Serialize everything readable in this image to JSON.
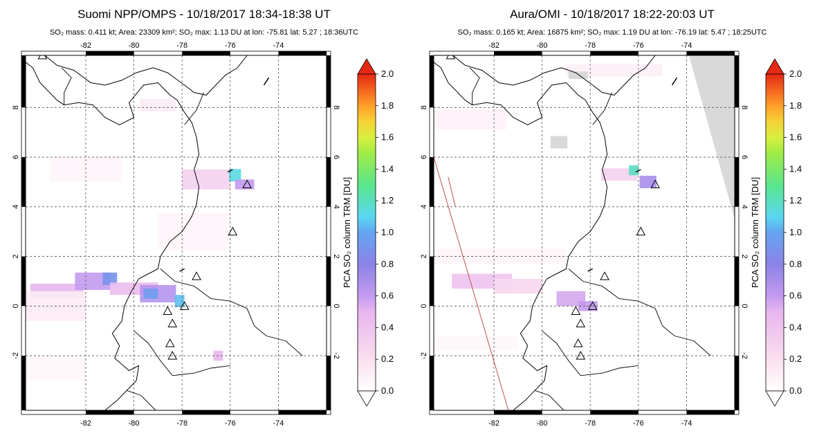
{
  "panels": [
    {
      "title": "Suomi NPP/OMPS - 10/18/2017 18:34-18:38 UT",
      "subtitle": "SO₂ mass: 0.411 kt; Area: 23309 km²; SO₂ max: 1.13 DU at lon: -75.81 lat: 5.27 ; 18:36UTC",
      "plumes": [
        {
          "lon": -83.2,
          "lat": 0.6,
          "w": 2.2,
          "h": 0.6,
          "v": 0.5
        },
        {
          "lon": -81.7,
          "lat": 1.0,
          "w": 1.5,
          "h": 0.7,
          "v": 0.6
        },
        {
          "lon": -81.0,
          "lat": 1.1,
          "w": 0.6,
          "h": 0.5,
          "v": 0.9
        },
        {
          "lon": -80.0,
          "lat": 0.7,
          "w": 2.0,
          "h": 0.5,
          "v": 0.45
        },
        {
          "lon": -79.0,
          "lat": 0.5,
          "w": 1.5,
          "h": 0.7,
          "v": 0.65
        },
        {
          "lon": -79.3,
          "lat": 0.5,
          "w": 0.6,
          "h": 0.4,
          "v": 0.95
        },
        {
          "lon": -78.1,
          "lat": 0.2,
          "w": 0.4,
          "h": 0.5,
          "v": 1.05
        },
        {
          "lon": -77.0,
          "lat": 5.1,
          "w": 2.0,
          "h": 0.8,
          "v": 0.3
        },
        {
          "lon": -75.8,
          "lat": 5.27,
          "w": 0.5,
          "h": 0.5,
          "v": 1.13
        },
        {
          "lon": -75.4,
          "lat": 4.9,
          "w": 0.8,
          "h": 0.4,
          "v": 0.6
        },
        {
          "lon": -76.5,
          "lat": -2.0,
          "w": 0.4,
          "h": 0.4,
          "v": 0.5
        },
        {
          "lon": -84.0,
          "lat": 0.0,
          "w": 4.0,
          "h": 1.2,
          "v": 0.12
        },
        {
          "lon": -79.0,
          "lat": 8.1,
          "w": 1.5,
          "h": 0.5,
          "v": 0.12
        },
        {
          "lon": -82.0,
          "lat": 5.5,
          "w": 3.0,
          "h": 1.0,
          "v": 0.06
        },
        {
          "lon": -77.5,
          "lat": 3.0,
          "w": 3.0,
          "h": 1.5,
          "v": 0.06
        },
        {
          "lon": -83.5,
          "lat": -2.5,
          "w": 3.0,
          "h": 1.0,
          "v": 0.05
        }
      ],
      "gray": []
    },
    {
      "title": "Aura/OMI - 10/18/2017 18:22-20:03 UT",
      "subtitle": "SO₂ mass: 0.165 kt; Area: 16875 km²; SO₂ max: 1.19 DU at lon: -76.19 lat: 5.47 ; 18:25UTC",
      "plumes": [
        {
          "lon": -82.5,
          "lat": 1.0,
          "w": 2.5,
          "h": 0.6,
          "v": 0.4
        },
        {
          "lon": -81.0,
          "lat": 0.8,
          "w": 2.0,
          "h": 0.6,
          "v": 0.25
        },
        {
          "lon": -78.8,
          "lat": 0.3,
          "w": 1.2,
          "h": 0.6,
          "v": 0.55
        },
        {
          "lon": -78.1,
          "lat": 0.0,
          "w": 0.8,
          "h": 0.4,
          "v": 0.6
        },
        {
          "lon": -76.8,
          "lat": 5.3,
          "w": 1.5,
          "h": 0.5,
          "v": 0.3
        },
        {
          "lon": -76.19,
          "lat": 5.47,
          "w": 0.4,
          "h": 0.4,
          "v": 1.19
        },
        {
          "lon": -75.6,
          "lat": 5.0,
          "w": 0.7,
          "h": 0.5,
          "v": 0.7
        },
        {
          "lon": -84.0,
          "lat": 7.5,
          "w": 5.0,
          "h": 0.8,
          "v": 0.08
        },
        {
          "lon": -82.0,
          "lat": 2.0,
          "w": 6.0,
          "h": 0.6,
          "v": 0.06
        },
        {
          "lon": -77.0,
          "lat": 9.5,
          "w": 4.0,
          "h": 0.5,
          "v": 0.1
        },
        {
          "lon": -83.0,
          "lat": -1.5,
          "w": 4.0,
          "h": 0.6,
          "v": 0.05
        }
      ],
      "gray": [
        {
          "lon": -79.3,
          "lat": 6.6,
          "w": 0.7,
          "h": 0.5
        },
        {
          "lon": -78.5,
          "lat": 9.3,
          "w": 0.8,
          "h": 0.3
        }
      ]
    }
  ],
  "map": {
    "lon_range": [
      -84.5,
      -72.0
    ],
    "lat_range": [
      -4.2,
      10.1
    ],
    "lon_ticks": [
      -82,
      -80,
      -78,
      -76,
      -74
    ],
    "lat_ticks": [
      -2,
      0,
      2,
      4,
      6,
      8
    ],
    "volcanoes": [
      {
        "lon": -83.8,
        "lat": 10.1
      },
      {
        "lon": -75.3,
        "lat": 4.9
      },
      {
        "lon": -75.9,
        "lat": 3.0
      },
      {
        "lon": -77.4,
        "lat": 1.2
      },
      {
        "lon": -77.9,
        "lat": 0.0
      },
      {
        "lon": -78.6,
        "lat": -0.2
      },
      {
        "lon": -78.4,
        "lat": -0.7
      },
      {
        "lon": -78.5,
        "lat": -1.5
      },
      {
        "lon": -78.4,
        "lat": -2.0
      }
    ]
  },
  "colorbar": {
    "label": "PCA SO₂ column TRM [DU]",
    "ticks": [
      "0.0",
      "0.2",
      "0.4",
      "0.6",
      "0.8",
      "1.0",
      "1.2",
      "1.4",
      "1.6",
      "1.8",
      "2.0"
    ],
    "min": 0,
    "max": 2
  },
  "colors": {
    "coast": "#000000",
    "grid": "#555555",
    "swath_edge": "#c0504d",
    "missing": "#d9d9d9"
  }
}
